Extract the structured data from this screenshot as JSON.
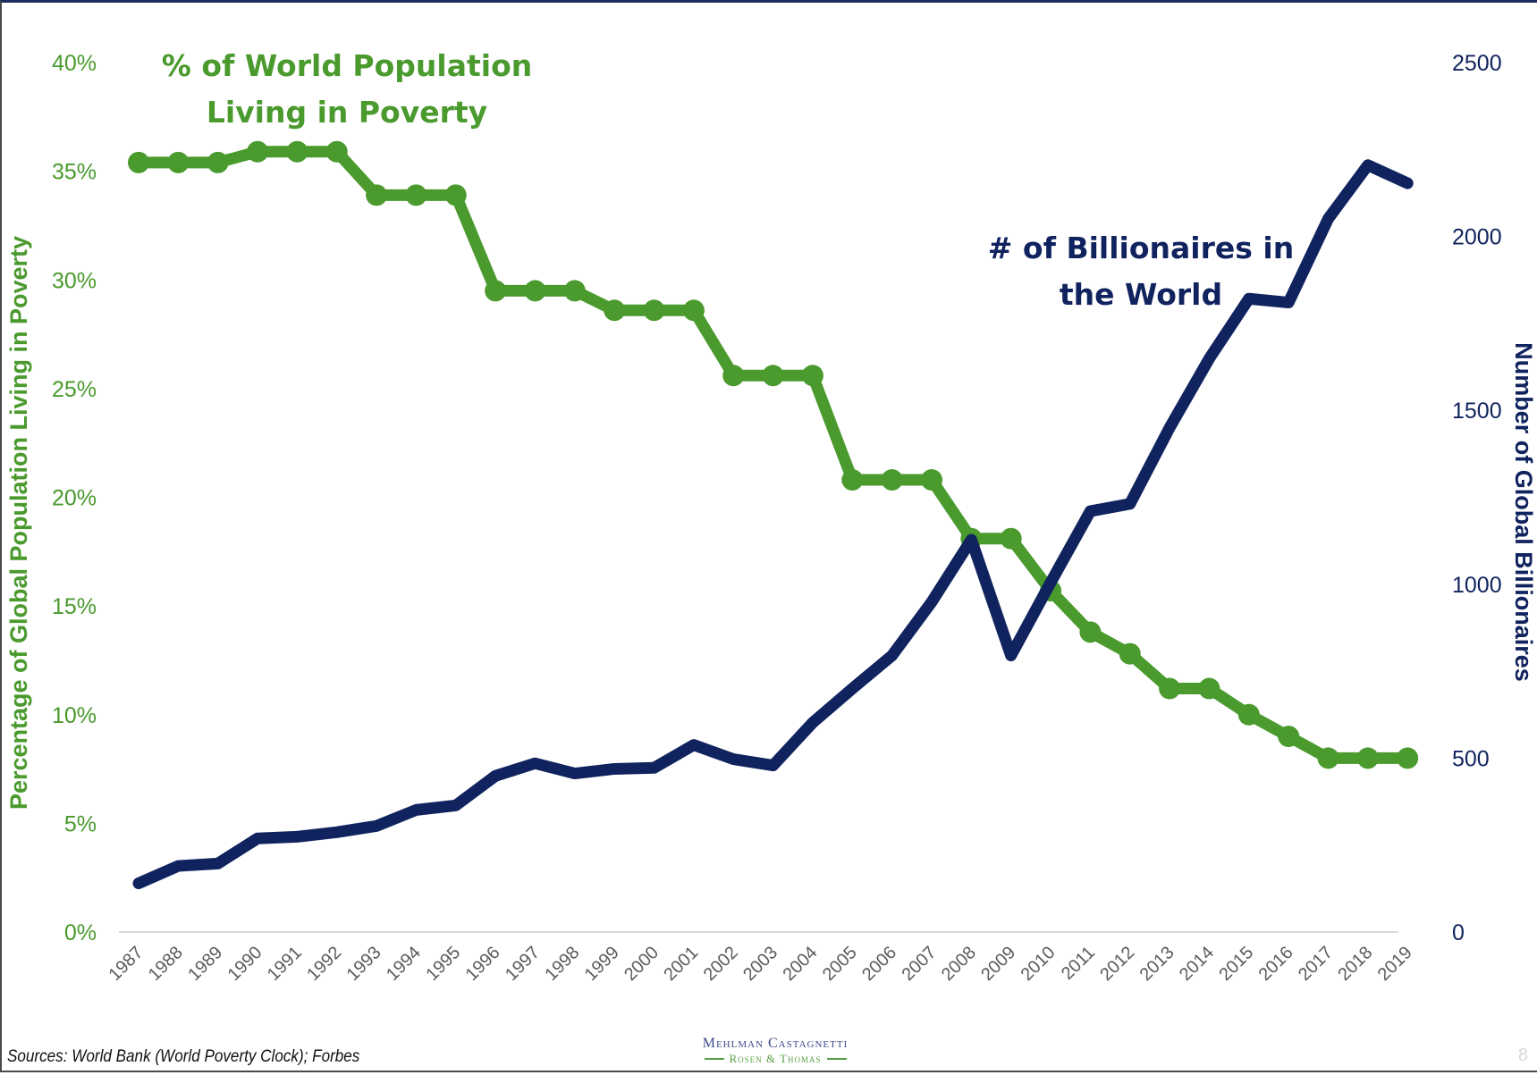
{
  "chart_data": {
    "type": "line",
    "title": "",
    "x": [
      "1987",
      "1988",
      "1989",
      "1990",
      "1991",
      "1992",
      "1993",
      "1994",
      "1995",
      "1996",
      "1997",
      "1998",
      "1999",
      "2000",
      "2001",
      "2002",
      "2003",
      "2004",
      "2005",
      "2006",
      "2007",
      "2008",
      "2009",
      "2010",
      "2011",
      "2012",
      "2013",
      "2014",
      "2015",
      "2016",
      "2017",
      "2018",
      "2019"
    ],
    "series": [
      {
        "name": "% of World Population Living in Poverty",
        "axis": "left",
        "color": "#4a9a2e",
        "markers": true,
        "values": [
          35.4,
          35.4,
          35.4,
          35.9,
          35.9,
          35.9,
          33.9,
          33.9,
          33.9,
          29.5,
          29.5,
          29.5,
          28.6,
          28.6,
          28.6,
          25.6,
          25.6,
          25.6,
          20.8,
          20.8,
          20.8,
          18.1,
          18.1,
          15.7,
          13.8,
          12.8,
          11.2,
          11.2,
          10.0,
          9.0,
          8.0,
          8.0,
          8.0
        ]
      },
      {
        "name": "# of Billionaires in the World",
        "axis": "right",
        "color": "#10235e",
        "markers": false,
        "values": [
          140,
          190,
          197,
          269,
          274,
          287,
          305,
          351,
          364,
          449,
          485,
          456,
          469,
          472,
          538,
          497,
          479,
          602,
          700,
          795,
          949,
          1128,
          795,
          1005,
          1210,
          1231,
          1450,
          1649,
          1821,
          1810,
          2051,
          2205,
          2153
        ]
      }
    ],
    "left_axis": {
      "label": "Percentage of Global Population Living in Poverty",
      "ylim": [
        0,
        40
      ],
      "ticks": [
        0,
        5,
        10,
        15,
        20,
        25,
        30,
        35,
        40
      ],
      "tick_labels": [
        "0%",
        "5%",
        "10%",
        "15%",
        "20%",
        "25%",
        "30%",
        "35%",
        "40%"
      ]
    },
    "right_axis": {
      "label": "Number of Global Billionaires",
      "ylim": [
        0,
        2500
      ],
      "ticks": [
        0,
        500,
        1000,
        1500,
        2000,
        2500
      ],
      "tick_labels": [
        "0",
        "500",
        "1000",
        "1500",
        "2000",
        "2500"
      ]
    },
    "annotations": [
      {
        "text_lines": [
          "% of World Population",
          "Living in Poverty"
        ],
        "series": "poverty",
        "placement": "top-left"
      },
      {
        "text_lines": [
          "# of Billionaires in",
          "the World"
        ],
        "series": "billionaires",
        "placement": "upper-right"
      }
    ],
    "xlabel": "",
    "grid": false,
    "legend": "none"
  },
  "footer": {
    "sources": "Sources: World Bank (World Poverty Clock); Forbes",
    "logo_line1": "Mehlman Castagnetti",
    "logo_line2": "Rosen & Thomas",
    "page_number": "8"
  },
  "colors": {
    "poverty_green": "#4a9a2e",
    "billionaire_navy": "#10235e",
    "axis_line": "#d9d9d9",
    "x_tick_text": "#5a5a5a"
  }
}
